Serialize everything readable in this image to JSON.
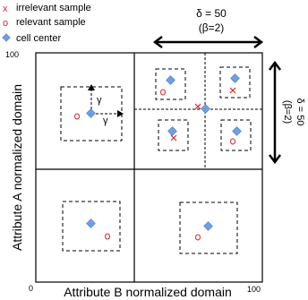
{
  "legend": {
    "irrelevant": {
      "symbol": "x",
      "label": "irrelevant sample"
    },
    "relevant": {
      "symbol": "o",
      "label": "relevant sample"
    },
    "center": {
      "label": "cell center"
    }
  },
  "axes": {
    "x_label": "Attribute B  normalized domain",
    "y_label": "Attribute A normalized domain",
    "x_max": "100",
    "y_max": "100",
    "origin": "0"
  },
  "annotations": {
    "top_delta": "δ = 50",
    "top_beta": "(β=2)",
    "right_delta": "δ = 50",
    "right_beta": "(β=2)",
    "gamma_vertical": "γ",
    "gamma_horizontal": "γ"
  },
  "colors": {
    "irrelevant": "#e0242a",
    "relevant": "#e0242a",
    "center": "#6f9fe0",
    "center_stroke": "#4a7fcc",
    "line": "#000000"
  }
}
